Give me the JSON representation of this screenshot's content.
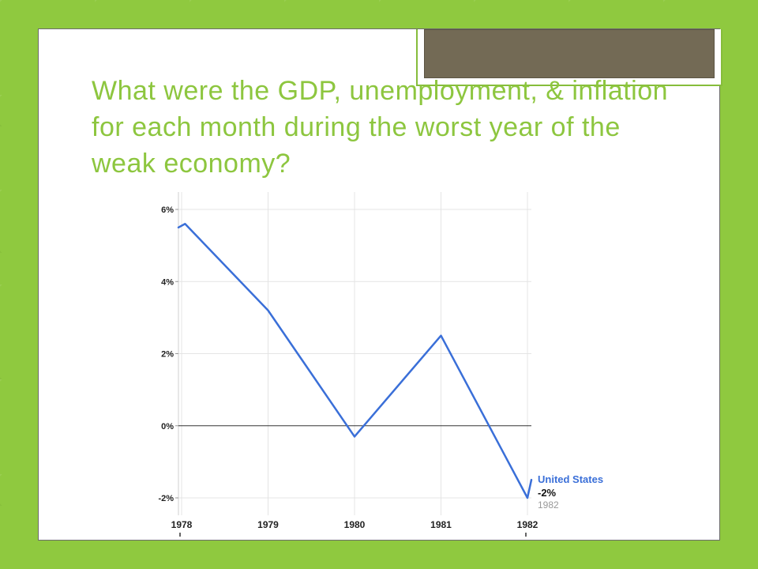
{
  "slide": {
    "title": "What were the GDP, unemployment, & inflation for each month during the worst year of the weak economy?"
  },
  "colors": {
    "background": "#8fc93f",
    "title": "#8dc63f",
    "series_line": "#3a6fd8",
    "legend_name": "#3a6fd8",
    "tab_fill": "#736a55"
  },
  "chart_data": {
    "type": "line",
    "title": "",
    "xlabel": "",
    "ylabel": "",
    "xlim": [
      1977.96,
      1982.0
    ],
    "ylim": [
      -2.3,
      6.4
    ],
    "x_ticks": [
      1978,
      1979,
      1980,
      1981,
      1982
    ],
    "x_tick_labels": [
      "1978",
      "1979",
      "1980",
      "1981",
      "1982"
    ],
    "y_ticks": [
      -2,
      0,
      2,
      4,
      6
    ],
    "y_tick_labels": [
      "-2%",
      "0%",
      "2%",
      "4%",
      "6%"
    ],
    "grid": true,
    "series": [
      {
        "name": "United States",
        "x": [
          1977.96,
          1978.04,
          1979,
          1980,
          1981,
          1982,
          1982.0
        ],
        "y": [
          5.5,
          5.6,
          3.2,
          -0.3,
          2.5,
          -2.0,
          -1.5
        ]
      }
    ],
    "tooltip": {
      "series": "United States",
      "value": "-2%",
      "year": "1982"
    }
  }
}
